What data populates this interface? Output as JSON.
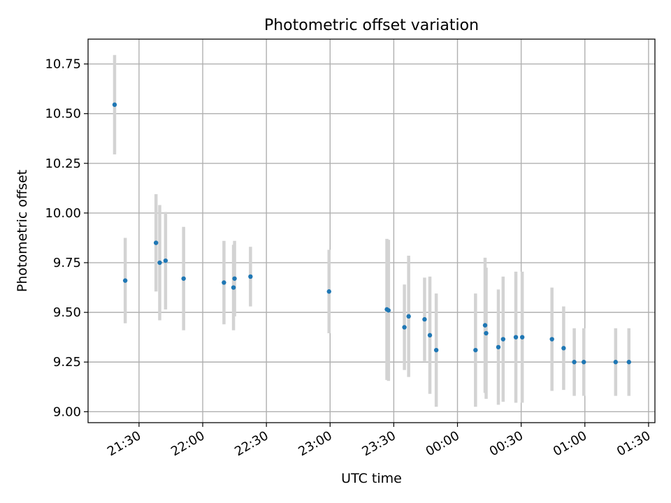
{
  "chart_data": {
    "type": "scatter",
    "title": "Photometric offset variation",
    "xlabel": "UTC time",
    "ylabel": "Photometric offset",
    "grid": true,
    "legend": "none",
    "colors": {
      "point": "#1f77b4",
      "errorbar": "#d3d3d3",
      "grid": "#b0b0b0"
    },
    "xlim": [
      "21:06",
      "01:33"
    ],
    "ylim": [
      8.945,
      10.875
    ],
    "x_ticks": [
      "21:30",
      "22:00",
      "22:30",
      "23:00",
      "23:30",
      "00:00",
      "00:30",
      "01:00",
      "01:30"
    ],
    "y_ticks": [
      "9.00",
      "9.25",
      "9.50",
      "9.75",
      "10.00",
      "10.25",
      "10.50",
      "10.75"
    ],
    "points": [
      {
        "time": "21:18:30",
        "y": 10.545,
        "err": 0.25
      },
      {
        "time": "21:23:30",
        "y": 9.66,
        "err": 0.215
      },
      {
        "time": "21:38:00",
        "y": 9.85,
        "err": 0.245
      },
      {
        "time": "21:39:45",
        "y": 9.75,
        "err": 0.29
      },
      {
        "time": "21:42:30",
        "y": 9.76,
        "err": 0.245
      },
      {
        "time": "21:51:00",
        "y": 9.67,
        "err": 0.26
      },
      {
        "time": "22:10:00",
        "y": 9.65,
        "err": 0.21
      },
      {
        "time": "22:14:30",
        "y": 9.625,
        "err": 0.215
      },
      {
        "time": "22:15:00",
        "y": 9.67,
        "err": 0.19
      },
      {
        "time": "22:22:30",
        "y": 9.68,
        "err": 0.15
      },
      {
        "time": "22:59:30",
        "y": 9.605,
        "err": 0.21
      },
      {
        "time": "23:26:45",
        "y": 9.515,
        "err": 0.355
      },
      {
        "time": "23:27:30",
        "y": 9.51,
        "err": 0.355
      },
      {
        "time": "23:35:00",
        "y": 9.425,
        "err": 0.215
      },
      {
        "time": "23:37:00",
        "y": 9.48,
        "err": 0.305
      },
      {
        "time": "23:44:30",
        "y": 9.465,
        "err": 0.21
      },
      {
        "time": "23:47:00",
        "y": 9.385,
        "err": 0.295
      },
      {
        "time": "23:50:00",
        "y": 9.31,
        "err": 0.285
      },
      {
        "time": "00:08:30",
        "y": 9.31,
        "err": 0.285
      },
      {
        "time": "00:13:00",
        "y": 9.435,
        "err": 0.34
      },
      {
        "time": "00:13:30",
        "y": 9.395,
        "err": 0.33
      },
      {
        "time": "00:19:15",
        "y": 9.325,
        "err": 0.29
      },
      {
        "time": "00:21:30",
        "y": 9.365,
        "err": 0.315
      },
      {
        "time": "00:27:30",
        "y": 9.375,
        "err": 0.33
      },
      {
        "time": "00:30:30",
        "y": 9.375,
        "err": 0.33
      },
      {
        "time": "00:44:30",
        "y": 9.365,
        "err": 0.26
      },
      {
        "time": "00:50:00",
        "y": 9.32,
        "err": 0.21
      },
      {
        "time": "00:55:00",
        "y": 9.25,
        "err": 0.17
      },
      {
        "time": "00:59:30",
        "y": 9.25,
        "err": 0.17
      },
      {
        "time": "01:14:30",
        "y": 9.25,
        "err": 0.17
      },
      {
        "time": "01:20:45",
        "y": 9.25,
        "err": 0.17
      }
    ]
  }
}
